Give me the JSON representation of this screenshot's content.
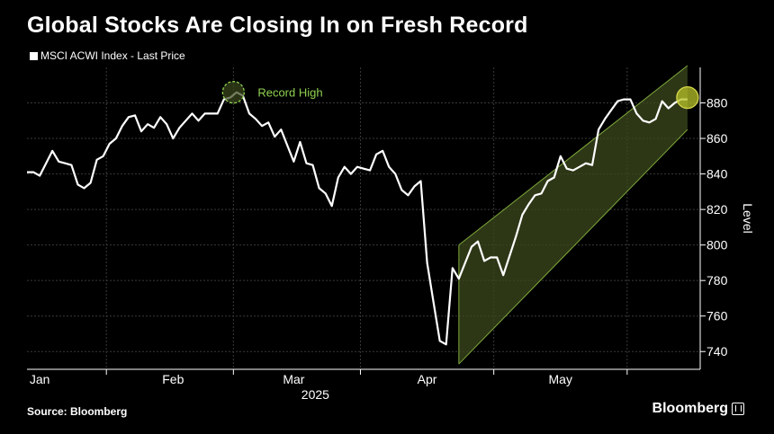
{
  "title": "Global Stocks Are Closing In on Fresh Record",
  "legend_label": "MSCI ACWI Index - Last Price",
  "source": "Source: Bloomberg",
  "brand": "Bloomberg",
  "colors": {
    "background": "#000000",
    "line": "#ffffff",
    "grid": "#3a3a3a",
    "annotation": "#8fd14f",
    "channel_fill": "#3c4a1e",
    "channel_edge": "#7ea83a",
    "marker_fill": "#b8c32a"
  },
  "chart_data": {
    "type": "line",
    "title": "Global Stocks Are Closing In on Fresh Record",
    "ylabel": "Level",
    "year_label": "2025",
    "ylim": [
      730,
      900
    ],
    "yticks": [
      740,
      760,
      780,
      800,
      820,
      840,
      860,
      880
    ],
    "month_ticks": [
      {
        "label": "Jan",
        "x": 0
      },
      {
        "label": "Feb",
        "x": 21
      },
      {
        "label": "Mar",
        "x": 40
      },
      {
        "label": "Apr",
        "x": 61
      },
      {
        "label": "May",
        "x": 82
      }
    ],
    "xlim": [
      -2,
      104
    ],
    "grid": true,
    "legend": "top-left",
    "series": [
      {
        "name": "MSCI ACWI Index - Last Price",
        "x": [
          -2,
          -1,
          0,
          1,
          2,
          3,
          4,
          5,
          6,
          7,
          8,
          9,
          10,
          11,
          12,
          13,
          14,
          15,
          16,
          17,
          18,
          19,
          20,
          21,
          22,
          23,
          24,
          25,
          26,
          27,
          28,
          29,
          30,
          31,
          32,
          33,
          34,
          35,
          36,
          37,
          38,
          39,
          40,
          41,
          42,
          43,
          44,
          45,
          46,
          47,
          48,
          49,
          50,
          51,
          52,
          53,
          54,
          55,
          56,
          57,
          58,
          59,
          60,
          61,
          62,
          63,
          64,
          65,
          66,
          67,
          68,
          69,
          70,
          71,
          72,
          73,
          74,
          75,
          76,
          77,
          78,
          79,
          80,
          81,
          82,
          83,
          84,
          85,
          86,
          87,
          88,
          89,
          90,
          91,
          92,
          93,
          94,
          95,
          96,
          97,
          98,
          99,
          100,
          101,
          102
        ],
        "values": [
          841,
          841,
          839,
          846,
          853,
          847,
          846,
          845,
          834,
          832,
          835,
          848,
          850,
          857,
          860,
          867,
          872,
          873,
          864,
          868,
          866,
          872,
          868,
          860,
          866,
          870,
          874,
          870,
          874,
          874,
          874,
          882,
          883,
          886,
          884,
          874,
          871,
          867,
          869,
          861,
          865,
          856,
          847,
          858,
          846,
          845,
          832,
          829,
          822,
          838,
          844,
          840,
          844,
          843,
          842,
          851,
          853,
          844,
          840,
          831,
          828,
          833,
          836,
          790,
          768,
          746,
          744,
          787,
          781,
          790,
          799,
          802,
          791,
          793,
          793,
          783,
          794,
          805,
          817,
          823,
          828,
          829,
          836,
          838,
          850,
          843,
          842,
          844,
          846,
          845,
          865,
          871,
          876,
          881,
          882,
          882,
          874,
          870,
          869,
          871,
          881,
          877,
          880,
          882,
          882
        ]
      }
    ],
    "annotations": [
      {
        "text": "Record High",
        "x": 30.5,
        "y": 886
      },
      {
        "type": "channel",
        "x0": 66,
        "x1": 102,
        "upper0": 800,
        "upper1": 901,
        "lower0": 733,
        "lower1": 865
      },
      {
        "type": "marker",
        "x": 102,
        "y": 883
      }
    ]
  }
}
